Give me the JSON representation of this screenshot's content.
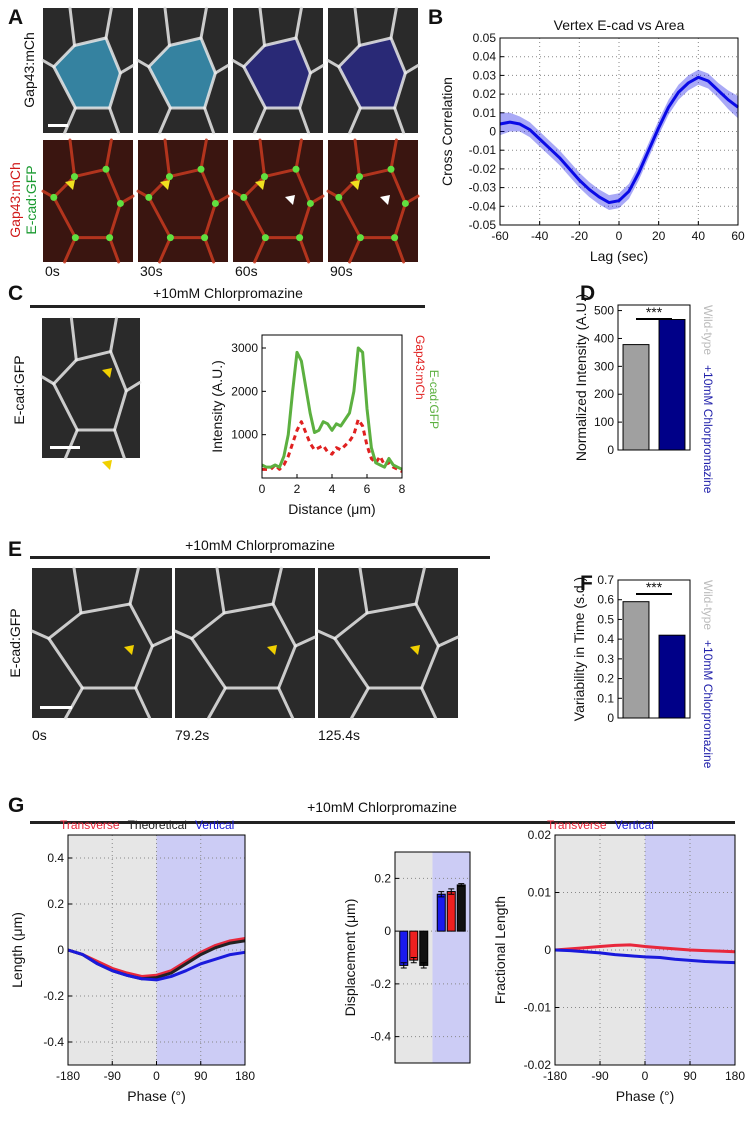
{
  "figure": {
    "panel_letters": [
      "A",
      "B",
      "C",
      "D",
      "E",
      "F",
      "G"
    ],
    "a_row1_label": "Gap43:mCh",
    "a_row2_labels": [
      "Gap43:mCh",
      "E-cad:GFP"
    ],
    "a_times": [
      "0s",
      "30s",
      "60s",
      "90s"
    ],
    "c_title": "+10mM Chlorpromazine",
    "c_label": "E-cad:GFP",
    "e_title": "+10mM Chlorpromazine",
    "e_label": "E-cad:GFP",
    "e_times": [
      "0s",
      "79.2s",
      "125.4s"
    ],
    "g_title": "+10mM Chlorpromazine"
  },
  "chart_data": [
    {
      "type": "line",
      "title": "Vertex E-cad vs Area",
      "xlabel": "Lag (sec)",
      "ylabel": "Cross Correlation",
      "x": [
        -60,
        -55,
        -50,
        -45,
        -40,
        -35,
        -30,
        -25,
        -20,
        -15,
        -10,
        -5,
        0,
        5,
        10,
        15,
        20,
        25,
        30,
        35,
        40,
        45,
        50,
        55,
        60
      ],
      "series": [
        {
          "color": "#0a0ae6",
          "values": [
            0.004,
            0.005,
            0.004,
            0.001,
            -0.004,
            -0.009,
            -0.014,
            -0.02,
            -0.026,
            -0.031,
            -0.035,
            -0.038,
            -0.037,
            -0.032,
            -0.022,
            -0.01,
            0.002,
            0.013,
            0.021,
            0.026,
            0.029,
            0.027,
            0.022,
            0.017,
            0.013
          ],
          "errors": [
            0.006,
            0.005,
            0.004,
            0.004,
            0.004,
            0.004,
            0.004,
            0.004,
            0.004,
            0.004,
            0.004,
            0.004,
            0.004,
            0.004,
            0.004,
            0.004,
            0.004,
            0.004,
            0.004,
            0.004,
            0.004,
            0.004,
            0.004,
            0.005,
            0.006
          ]
        }
      ],
      "xlim": [
        -60,
        60
      ],
      "xticks": [
        -60,
        -40,
        -20,
        0,
        20,
        40,
        60
      ],
      "ylim": [
        -0.05,
        0.05
      ],
      "yticks": [
        -0.05,
        -0.04,
        -0.03,
        -0.02,
        -0.01,
        0,
        0.01,
        0.02,
        0.03,
        0.04,
        0.05
      ],
      "grid": true
    },
    {
      "type": "line",
      "xlabel": "Distance (μm)",
      "ylabel": "Intensity (A.U.)",
      "x": [
        0,
        0.25,
        0.5,
        0.75,
        1,
        1.25,
        1.5,
        1.75,
        2,
        2.25,
        2.5,
        2.75,
        3,
        3.25,
        3.5,
        3.75,
        4,
        4.25,
        4.5,
        4.75,
        5,
        5.25,
        5.5,
        5.75,
        6,
        6.25,
        6.5,
        6.75,
        7,
        7.25,
        7.5,
        7.75,
        8
      ],
      "series": [
        {
          "name": "Gap43:mCh",
          "color": "#e02020",
          "dash": true,
          "values": [
            200,
            200,
            200,
            300,
            200,
            300,
            500,
            800,
            1100,
            1300,
            1050,
            800,
            650,
            700,
            750,
            600,
            550,
            700,
            650,
            750,
            850,
            1000,
            1350,
            1200,
            750,
            450,
            350,
            500,
            300,
            350,
            250,
            200,
            150
          ]
        },
        {
          "name": "E-cad:GFP",
          "color": "#5cb040",
          "values": [
            300,
            250,
            250,
            300,
            250,
            500,
            1000,
            2000,
            2900,
            2700,
            2100,
            1500,
            1050,
            1100,
            1300,
            1250,
            1100,
            1250,
            1200,
            1350,
            1500,
            2000,
            3000,
            2900,
            1600,
            700,
            350,
            300,
            250,
            450,
            300,
            250,
            200
          ]
        }
      ],
      "xlim": [
        0,
        8
      ],
      "xticks": [
        0,
        2,
        4,
        6,
        8
      ],
      "ylim": [
        0,
        3300
      ],
      "yticks": [
        1000,
        2000,
        3000
      ],
      "grid": false
    },
    {
      "type": "bar",
      "ylabel": "Normalized Intensity (A.U.)",
      "categories": [
        "Wild-type",
        "+10mM Chlorpromazine"
      ],
      "values": [
        378,
        468
      ],
      "colors": [
        "#a0a0a0",
        "#000088"
      ],
      "label_colors": [
        "#bbbbbb",
        "#2020aa"
      ],
      "ylim": [
        0,
        520
      ],
      "yticks": [
        0,
        100,
        200,
        300,
        400,
        500
      ],
      "annotation": "***",
      "grid": false
    },
    {
      "type": "bar",
      "ylabel": "Variability in Time (s.d.)",
      "categories": [
        "Wild-type",
        "+10mM Chlorpromazine"
      ],
      "values": [
        0.59,
        0.42
      ],
      "colors": [
        "#a0a0a0",
        "#000088"
      ],
      "label_colors": [
        "#bbbbbb",
        "#2020aa"
      ],
      "ylim": [
        0,
        0.7
      ],
      "yticks": [
        0,
        0.1,
        0.2,
        0.3,
        0.4,
        0.5,
        0.6,
        0.7
      ],
      "annotation": "***",
      "grid": false
    },
    {
      "type": "line",
      "xlabel": "Phase (°)",
      "ylabel": "Length (μm)",
      "x": [
        -180,
        -150,
        -120,
        -90,
        -60,
        -30,
        0,
        30,
        60,
        90,
        120,
        150,
        180
      ],
      "series": [
        {
          "name": "Transverse",
          "color": "#e8283c",
          "values": [
            0,
            -0.02,
            -0.05,
            -0.08,
            -0.1,
            -0.115,
            -0.11,
            -0.09,
            -0.05,
            -0.01,
            0.02,
            0.04,
            0.05
          ]
        },
        {
          "name": "Theoretical",
          "color": "#222222",
          "values": [
            0,
            -0.02,
            -0.06,
            -0.09,
            -0.11,
            -0.125,
            -0.12,
            -0.1,
            -0.06,
            -0.02,
            0.01,
            0.03,
            0.04
          ]
        },
        {
          "name": "Vertical",
          "color": "#1a1adc",
          "values": [
            0,
            -0.02,
            -0.06,
            -0.09,
            -0.11,
            -0.125,
            -0.13,
            -0.115,
            -0.09,
            -0.06,
            -0.04,
            -0.02,
            -0.01
          ]
        }
      ],
      "xlim": [
        -180,
        180
      ],
      "xticks": [
        -180,
        -90,
        0,
        90,
        180
      ],
      "ylim": [
        -0.5,
        0.5
      ],
      "yticks": [
        -0.4,
        -0.2,
        0,
        0.2,
        0.4
      ],
      "grid": true,
      "background_colors": [
        "#e6e6e6",
        "#ccccf5"
      ]
    },
    {
      "type": "grouped_bar",
      "ylabel": "Displacement (μm)",
      "categories": [
        null,
        null
      ],
      "series": [
        {
          "color": "#1a1aee",
          "values": [
            -0.13,
            0.14
          ],
          "errors": [
            0.01,
            0.01
          ]
        },
        {
          "color": "#ee2020",
          "values": [
            -0.11,
            0.15
          ],
          "errors": [
            0.01,
            0.01
          ]
        },
        {
          "color": "#111111",
          "values": [
            -0.13,
            0.175
          ],
          "errors": [
            0.01,
            0.005
          ]
        }
      ],
      "ylim": [
        -0.5,
        0.3
      ],
      "yticks": [
        -0.4,
        -0.2,
        0,
        0.2
      ],
      "grid": true,
      "background_colors": [
        "#e6e6e6",
        "#ccccf5"
      ]
    },
    {
      "type": "line",
      "xlabel": "Phase (°)",
      "ylabel": "Fractional Length",
      "x": [
        -180,
        -150,
        -120,
        -90,
        -60,
        -30,
        0,
        30,
        60,
        90,
        120,
        150,
        180
      ],
      "series": [
        {
          "name": "Transverse",
          "color": "#e8283c",
          "values": [
            0,
            0.0002,
            0.0004,
            0.0006,
            0.0008,
            0.0009,
            0.0006,
            0.0004,
            0.0002,
            0,
            -0.0001,
            -0.0002,
            -0.0003
          ]
        },
        {
          "name": "Vertical",
          "color": "#1a1adc",
          "values": [
            0,
            -0.0001,
            -0.0003,
            -0.0005,
            -0.0008,
            -0.001,
            -0.0012,
            -0.0013,
            -0.0016,
            -0.0018,
            -0.002,
            -0.0021,
            -0.0022
          ]
        }
      ],
      "xlim": [
        -180,
        180
      ],
      "xticks": [
        -180,
        -90,
        0,
        90,
        180
      ],
      "ylim": [
        -0.02,
        0.02
      ],
      "yticks": [
        -0.02,
        -0.01,
        0,
        0.01,
        0.02
      ],
      "grid": true,
      "background_colors": [
        "#e6e6e6",
        "#ccccf5"
      ]
    }
  ]
}
